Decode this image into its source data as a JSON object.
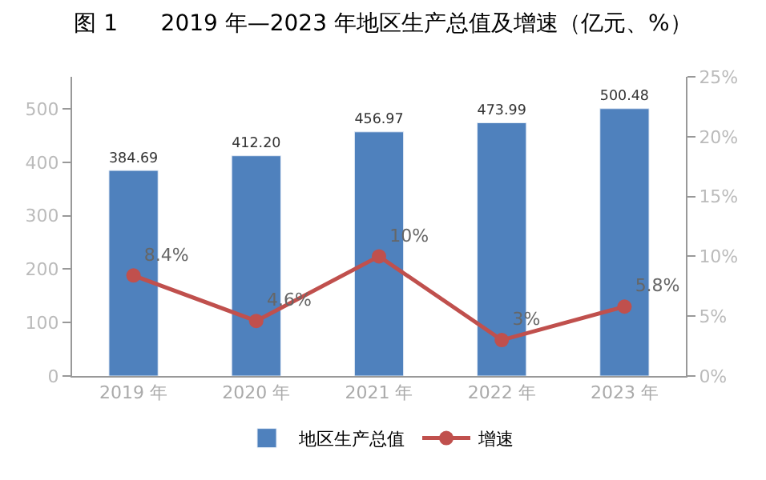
{
  "chart_data": {
    "type": "bar",
    "title": "图 1      2019 年—2023 年地区生产总值及增速（亿元、%）",
    "categories": [
      "2019 年",
      "2020 年",
      "2021 年",
      "2022 年",
      "2023 年"
    ],
    "series": [
      {
        "name": "地区生产总值",
        "color": "#4f81bd",
        "values": [
          384.69,
          412.2,
          456.97,
          473.99,
          500.48
        ],
        "value_labels": [
          "384.69",
          "412.20",
          "456.97",
          "473.99",
          "500.48"
        ]
      },
      {
        "name": "增速",
        "type": "line",
        "axis": "y2",
        "color": "#c0504d",
        "marker": "circle",
        "values": [
          8.4,
          4.6,
          10,
          3,
          5.8
        ],
        "value_labels": [
          "8.4%",
          "4.6%",
          "10%",
          "3%",
          "5.8%"
        ]
      }
    ],
    "ylim": [
      0,
      560
    ],
    "yticks": [
      0,
      100,
      200,
      300,
      400,
      500
    ],
    "y2lim": [
      0,
      25
    ],
    "y2ticks": [
      {
        "value": 0,
        "label": "0%"
      },
      {
        "value": 5,
        "label": "5%"
      },
      {
        "value": 10,
        "label": "10%"
      },
      {
        "value": 15,
        "label": "15%"
      },
      {
        "value": 20,
        "label": "20%"
      },
      {
        "value": 25,
        "label": "25%"
      }
    ],
    "legend": "bottom"
  }
}
